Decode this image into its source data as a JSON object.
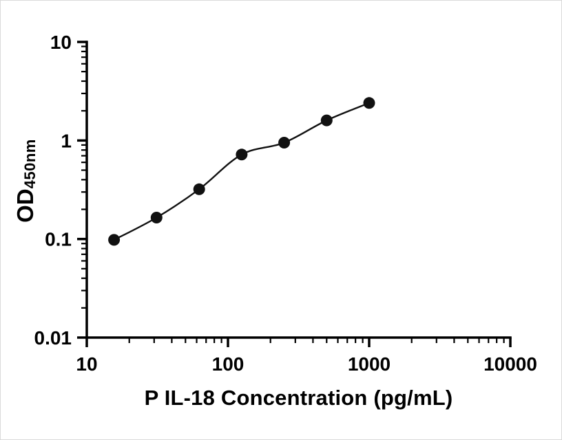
{
  "chart_data": {
    "type": "scatter",
    "x": [
      15.6,
      31.2,
      62.5,
      125,
      250,
      500,
      1000
    ],
    "y": [
      0.098,
      0.165,
      0.32,
      0.72,
      0.95,
      1.6,
      2.4
    ],
    "title": "",
    "xlabel": "P IL-18 Concentration (pg/mL)",
    "ylabel": "OD450nm",
    "ylabel_main": "OD",
    "ylabel_sub": "450nm",
    "x_scale": "log",
    "y_scale": "log",
    "xlim": [
      10,
      10000
    ],
    "ylim": [
      0.01,
      10
    ],
    "x_tick_values": [
      10,
      100,
      1000,
      10000
    ],
    "x_tick_labels": [
      "10",
      "100",
      "1000",
      "10000"
    ],
    "y_tick_values": [
      0.01,
      0.1,
      1,
      10
    ],
    "y_tick_labels": [
      "0.01",
      "0.1",
      "1",
      "10"
    ],
    "grid": false,
    "legend": false,
    "fit_line": true,
    "marker_color": "#111111",
    "line_color": "#111111",
    "axis_color": "#000000",
    "background": "#ffffff"
  }
}
